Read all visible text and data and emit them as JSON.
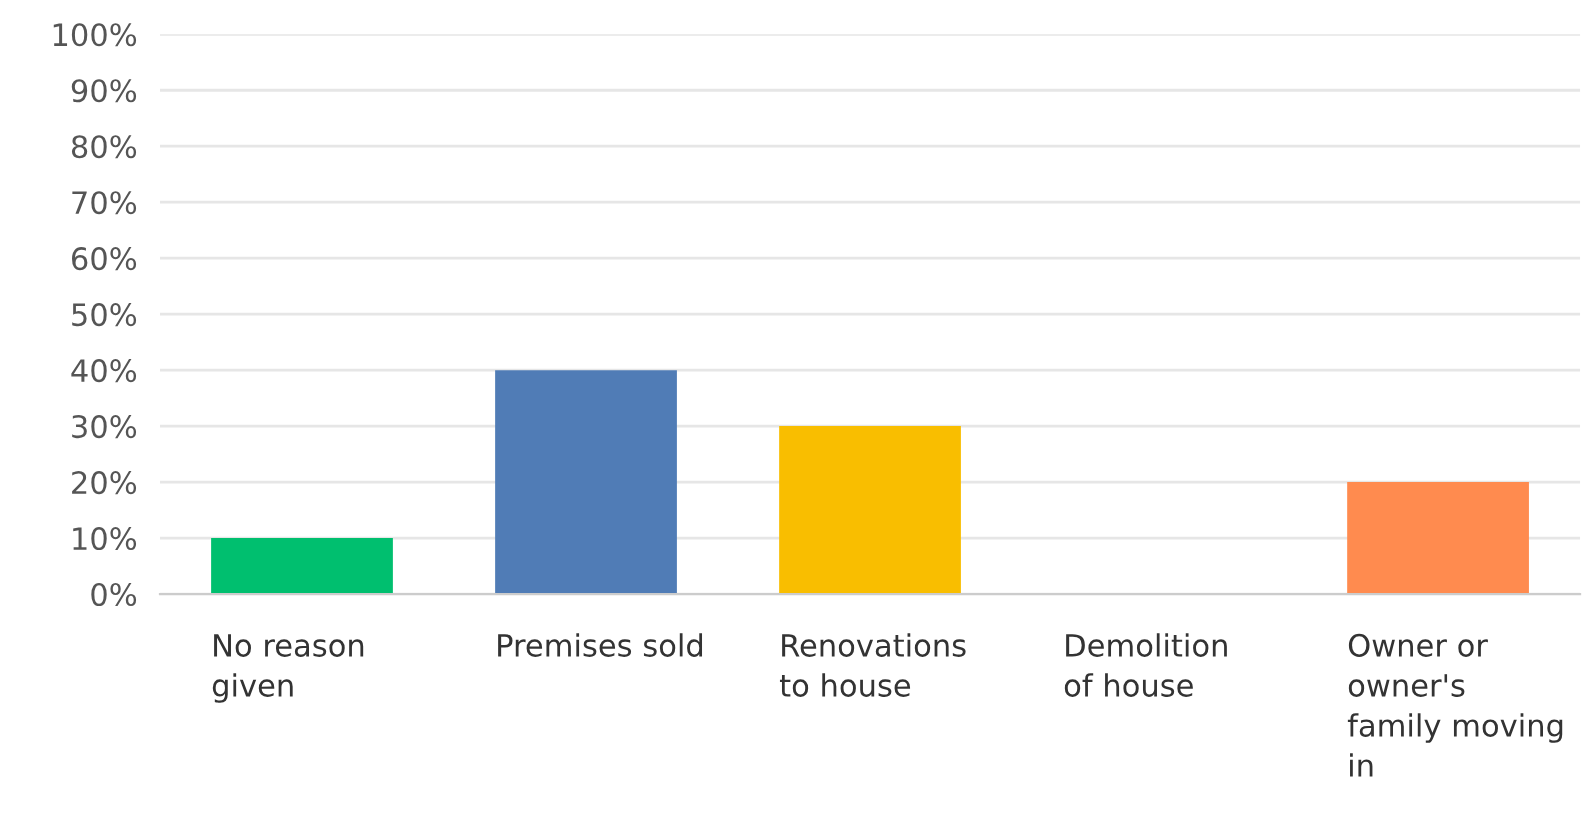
{
  "chart_data": {
    "type": "bar",
    "categories": [
      "No reason\ngiven",
      "Premises sold",
      "Renovations\nto house",
      "Demolition\nof house",
      "Owner or\nowner's\nfamily moving\nin"
    ],
    "values": [
      10,
      40,
      30,
      0,
      20
    ],
    "colors": [
      "#00bf6f",
      "#507cb6",
      "#f9be00",
      "#6bc8cd",
      "#ff8b4f"
    ],
    "ylim": [
      0,
      100
    ],
    "yticks": [
      {
        "value": 0,
        "label": "0%"
      },
      {
        "value": 10,
        "label": "10%"
      },
      {
        "value": 20,
        "label": "20%"
      },
      {
        "value": 30,
        "label": "30%"
      },
      {
        "value": 40,
        "label": "40%"
      },
      {
        "value": 50,
        "label": "50%"
      },
      {
        "value": 60,
        "label": "60%"
      },
      {
        "value": 70,
        "label": "70%"
      },
      {
        "value": 80,
        "label": "80%"
      },
      {
        "value": 90,
        "label": "90%"
      },
      {
        "value": 100,
        "label": "100%"
      }
    ],
    "grid": "y"
  }
}
